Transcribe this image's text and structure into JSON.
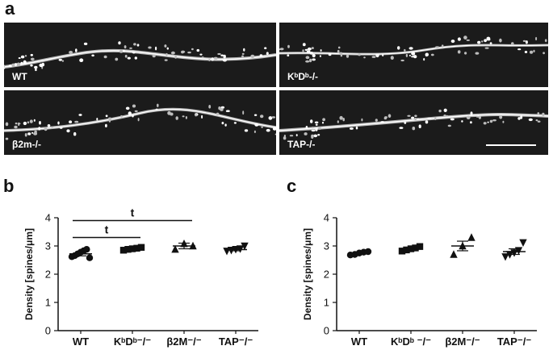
{
  "panel_a": {
    "letter": "a",
    "images": [
      {
        "label": "WT"
      },
      {
        "label": "KᵇDᵇ-/-"
      },
      {
        "label": "β2m-/-"
      },
      {
        "label": "TAP-/-"
      }
    ]
  },
  "panel_b": {
    "letter": "b"
  },
  "panel_c": {
    "letter": "c"
  },
  "chart_data": [
    {
      "type": "scatter",
      "panel": "b",
      "ylabel": "Density [spines/μm]",
      "ylim": [
        0,
        4
      ],
      "yticks": [
        0,
        1,
        2,
        3,
        4
      ],
      "categories": [
        "WT",
        "KᵇDᵇ⁻/⁻",
        "β2M⁻/⁻",
        "TAP⁻/⁻"
      ],
      "markers": [
        "circle",
        "square",
        "triangle-up",
        "triangle-down"
      ],
      "points": [
        [
          2.62,
          2.66,
          2.72,
          2.78,
          2.83,
          2.88,
          2.58
        ],
        [
          2.85,
          2.88,
          2.9,
          2.92,
          2.95
        ],
        [
          2.88,
          3.08,
          3.0
        ],
        [
          2.82,
          2.85,
          2.88,
          2.9,
          3.0
        ]
      ],
      "means": [
        2.72,
        2.9,
        3.0,
        2.87
      ],
      "sem": [
        0.07,
        0.03,
        0.1,
        0.04
      ],
      "significance": [
        {
          "from": 0,
          "to": 1,
          "label": "t",
          "y": 3.3
        },
        {
          "from": 0,
          "to": 2,
          "label": "t",
          "y": 3.9
        }
      ]
    },
    {
      "type": "scatter",
      "panel": "c",
      "ylabel": "Density [spines/μm]",
      "ylim": [
        0,
        4
      ],
      "yticks": [
        0,
        1,
        2,
        3,
        4
      ],
      "categories": [
        "WT",
        "KᵇDᵇ ⁻/⁻",
        "β2M⁻/⁻",
        "TAP⁻/⁻"
      ],
      "markers": [
        "circle",
        "square",
        "triangle-up",
        "triangle-down"
      ],
      "points": [
        [
          2.68,
          2.7,
          2.75,
          2.78,
          2.8
        ],
        [
          2.82,
          2.86,
          2.9,
          2.93,
          2.98
        ],
        [
          2.7,
          3.0,
          3.3
        ],
        [
          2.62,
          2.7,
          2.76,
          2.84,
          3.12
        ]
      ],
      "means": [
        2.75,
        2.9,
        3.0,
        2.8
      ],
      "sem": [
        0.03,
        0.03,
        0.17,
        0.1
      ],
      "significance": []
    }
  ]
}
